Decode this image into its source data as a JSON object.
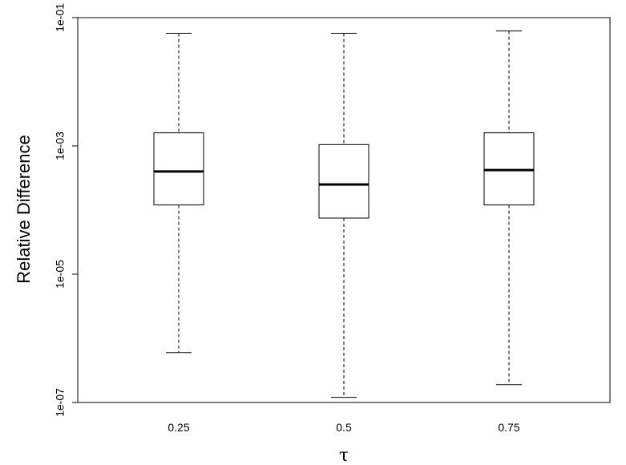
{
  "chart_data": {
    "type": "boxplot",
    "ylabel": "Relative Difference",
    "xlabel": "τ",
    "yscale": "log10",
    "ylim": [
      1e-07,
      0.1
    ],
    "yticks": [
      "1e-07",
      "1e-05",
      "1e-03",
      "1e-01"
    ],
    "ytick_values": [
      1e-07,
      1e-05,
      0.001,
      0.1
    ],
    "categories": [
      "0.25",
      "0.5",
      "0.75"
    ],
    "boxes": [
      {
        "category": "0.25",
        "min": 6e-07,
        "q1": 0.00012,
        "median": 0.0004,
        "q3": 0.0016,
        "max": 0.057
      },
      {
        "category": "0.5",
        "min": 1.2e-07,
        "q1": 7.5e-05,
        "median": 0.00025,
        "q3": 0.00105,
        "max": 0.057
      },
      {
        "category": "0.75",
        "min": 1.9e-07,
        "q1": 0.00012,
        "median": 0.00042,
        "q3": 0.0016,
        "max": 0.062
      }
    ],
    "grid": false,
    "legend": "none"
  }
}
